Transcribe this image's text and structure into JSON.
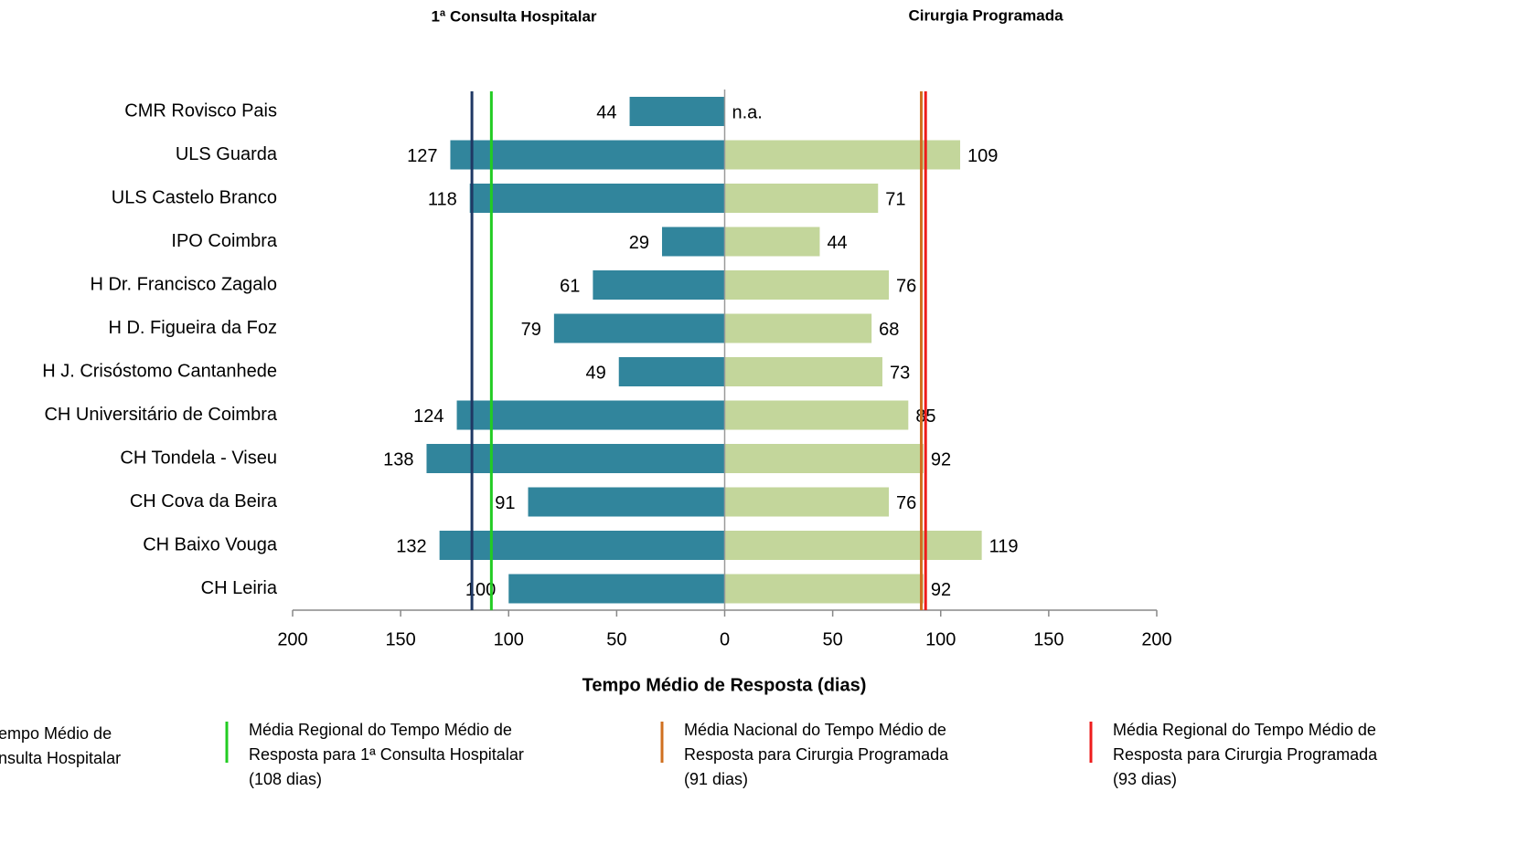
{
  "chart_data": {
    "type": "butterfly_bar",
    "titles": [
      {
        "text": "1ª Consulta Hospitalar",
        "color": "#2e7082"
      },
      {
        "text": "Cirurgia Programada",
        "color": "#4f6228"
      }
    ],
    "xlabel": "Tempo Médio de Resposta (dias)",
    "categories": [
      "CMR Rovisco Pais",
      "ULS Guarda",
      "ULS Castelo Branco",
      "IPO Coimbra",
      "H Dr. Francisco Zagalo",
      "H D. Figueira da Foz",
      "H J. Crisóstomo Cantanhede",
      "CH Universitário de Coimbra",
      "CH Tondela - Viseu",
      "CH Cova da Beira",
      "CH Baixo Vouga",
      "CH Leiria"
    ],
    "series": [
      {
        "side": "left",
        "color": "#31859c",
        "values": [
          44,
          127,
          118,
          29,
          61,
          79,
          49,
          124,
          138,
          91,
          132,
          100
        ]
      },
      {
        "side": "right",
        "color": "#c3d69b",
        "values": [
          null,
          109,
          71,
          44,
          76,
          68,
          73,
          85,
          92,
          76,
          119,
          92
        ],
        "value_labels": [
          "n.a.",
          "109",
          "71",
          "44",
          "76",
          "68",
          "73",
          "85",
          "92",
          "76",
          "119",
          "92"
        ]
      }
    ],
    "reference_lines": [
      {
        "side": "left",
        "value": 117,
        "color": "#1f3864",
        "name": [
          "empo Médio de",
          "nsulta Hospitalar"
        ]
      },
      {
        "side": "left",
        "value": 108,
        "color": "#22cc22",
        "name": [
          "Média Regional do Tempo Médio de",
          "Resposta para 1ª Consulta Hospitalar",
          "(108 dias)"
        ]
      },
      {
        "side": "right",
        "value": 91,
        "color": "#d07020",
        "name": [
          "Média Nacional do Tempo Médio de",
          "Resposta para Cirurgia Programada",
          "(91 dias)"
        ]
      },
      {
        "side": "right",
        "value": 93,
        "color": "#ee1c1c",
        "name": [
          "Média Regional do Tempo Médio de",
          "Resposta para Cirurgia Programada",
          "(93 dias)"
        ]
      }
    ],
    "xlim": [
      -200,
      200
    ],
    "xticks": [
      {
        "value": -200,
        "label": "200"
      },
      {
        "value": -150,
        "label": "150"
      },
      {
        "value": -100,
        "label": "100"
      },
      {
        "value": -50,
        "label": "50"
      },
      0,
      50,
      100,
      150,
      200
    ],
    "grid": false
  }
}
